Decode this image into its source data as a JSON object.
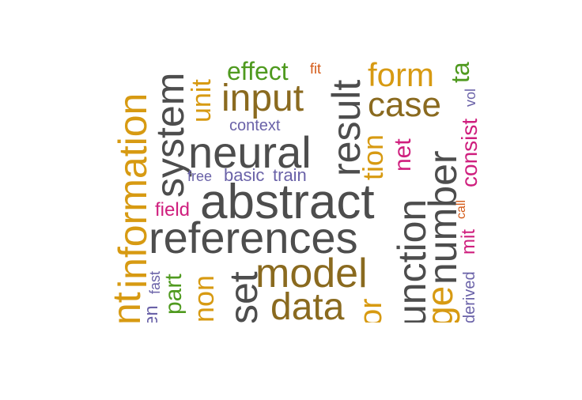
{
  "palette": {
    "gray": "#4d4d4d",
    "brown": "#8a6a1f",
    "gold": "#d79a12",
    "green": "#4f9a1f",
    "purple": "#6a62a8",
    "magenta": "#cf1f7e",
    "orange": "#d45a17"
  },
  "words": {
    "information": "information",
    "nt": "nt",
    "en": "en",
    "fast": "fast",
    "part": "part",
    "system": "system",
    "unit": "unit",
    "non": "non",
    "set": "set",
    "effect": "effect",
    "fit": "fit",
    "input": "input",
    "context": "context",
    "neural": "neural",
    "free": "free",
    "basic": "basic",
    "train": "train",
    "field": "field",
    "abstract": "abstract",
    "references": "references",
    "model": "model",
    "data": "data",
    "result": "result",
    "tion": "tion",
    "or": "or",
    "unction": "unction",
    "form": "form",
    "case": "case",
    "net": "net",
    "number": "number",
    "ge": "ge",
    "consist": "consist",
    "vol": "vol",
    "call": "call",
    "mit": "mit",
    "derived": "derived",
    "ta": "ta",
    "g": "g"
  }
}
